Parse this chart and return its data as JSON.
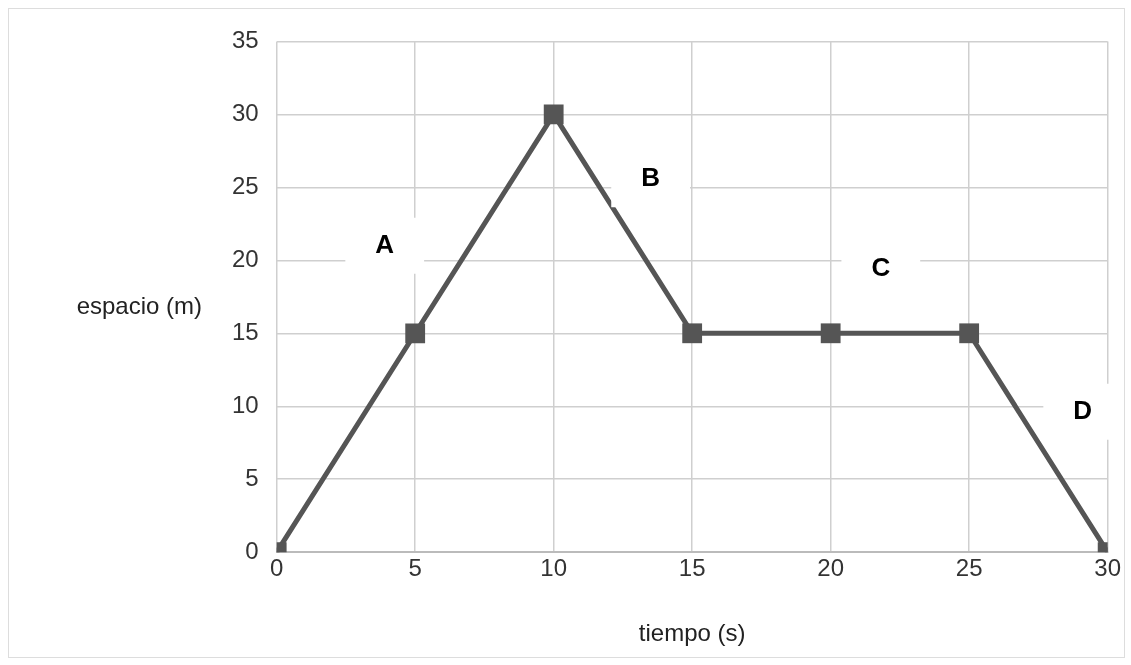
{
  "chart_data": {
    "type": "line",
    "xlabel": "tiempo (s)",
    "ylabel": "espacio (m)",
    "x": [
      0,
      5,
      10,
      15,
      20,
      25,
      30
    ],
    "series": [
      {
        "color": "#555555",
        "values": [
          0,
          15,
          30,
          15,
          15,
          15,
          0
        ]
      }
    ],
    "xlim": [
      0,
      30
    ],
    "ylim": [
      0,
      35
    ],
    "xticks": [
      0,
      5,
      10,
      15,
      20,
      25,
      30
    ],
    "yticks": [
      0,
      5,
      10,
      15,
      20,
      25,
      30,
      35
    ],
    "grid": true,
    "legend": false,
    "marker": "square",
    "line_style": "solid",
    "annotations": [
      "A",
      "B",
      "C",
      "D"
    ]
  }
}
